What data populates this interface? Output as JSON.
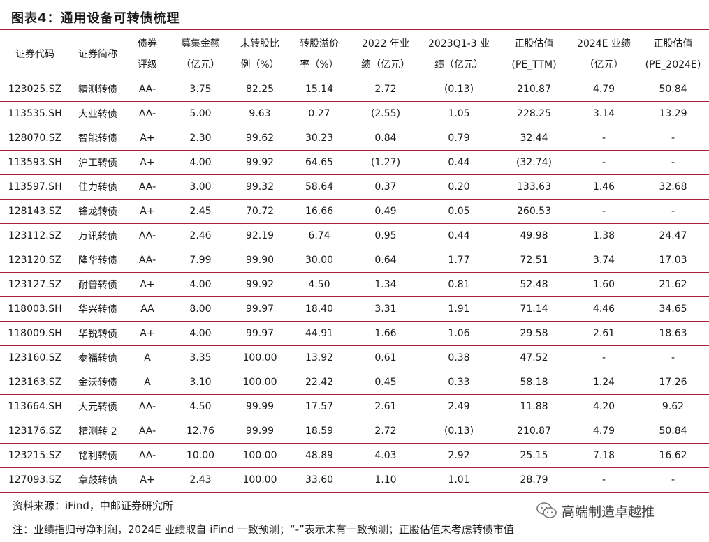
{
  "title": "图表4：通用设备可转债梳理",
  "columns": [
    {
      "line1": "证券代码",
      "line2": ""
    },
    {
      "line1": "证券简称",
      "line2": ""
    },
    {
      "line1": "债券",
      "line2": "评级"
    },
    {
      "line1": "募集金额",
      "line2": "（亿元）"
    },
    {
      "line1": "未转股比",
      "line2": "例（%）"
    },
    {
      "line1": "转股溢价",
      "line2": "率（%）"
    },
    {
      "line1": "2022 年业",
      "line2": "绩（亿元）"
    },
    {
      "line1": "2023Q1-3 业",
      "line2": "绩（亿元）"
    },
    {
      "line1": "正股估值",
      "line2": "(PE_TTM)"
    },
    {
      "line1": "2024E 业绩",
      "line2": "（亿元）"
    },
    {
      "line1": "正股估值",
      "line2": "(PE_2024E)"
    }
  ],
  "rows": [
    [
      "123025.SZ",
      "精测转债",
      "AA-",
      "3.75",
      "82.25",
      "15.14",
      "2.72",
      "(0.13)",
      "210.87",
      "4.79",
      "50.84"
    ],
    [
      "113535.SH",
      "大业转债",
      "AA-",
      "5.00",
      "9.63",
      "0.27",
      "(2.55)",
      "1.05",
      "228.25",
      "3.14",
      "13.29"
    ],
    [
      "128070.SZ",
      "智能转债",
      "A+",
      "2.30",
      "99.62",
      "30.23",
      "0.84",
      "0.79",
      "32.44",
      "-",
      "-"
    ],
    [
      "113593.SH",
      "沪工转债",
      "A+",
      "4.00",
      "99.92",
      "64.65",
      "(1.27)",
      "0.44",
      "(32.74)",
      "-",
      "-"
    ],
    [
      "113597.SH",
      "佳力转债",
      "AA-",
      "3.00",
      "99.32",
      "58.64",
      "0.37",
      "0.20",
      "133.63",
      "1.46",
      "32.68"
    ],
    [
      "128143.SZ",
      "锋龙转债",
      "A+",
      "2.45",
      "70.72",
      "16.66",
      "0.49",
      "0.05",
      "260.53",
      "-",
      "-"
    ],
    [
      "123112.SZ",
      "万讯转债",
      "AA-",
      "2.46",
      "92.19",
      "6.74",
      "0.95",
      "0.44",
      "49.98",
      "1.38",
      "24.47"
    ],
    [
      "123120.SZ",
      "隆华转债",
      "AA-",
      "7.99",
      "99.90",
      "30.00",
      "0.64",
      "1.77",
      "72.51",
      "3.74",
      "17.03"
    ],
    [
      "123127.SZ",
      "耐普转债",
      "A+",
      "4.00",
      "99.92",
      "4.50",
      "1.34",
      "0.81",
      "52.48",
      "1.60",
      "21.62"
    ],
    [
      "118003.SH",
      "华兴转债",
      "AA",
      "8.00",
      "99.97",
      "18.40",
      "3.31",
      "1.91",
      "71.14",
      "4.46",
      "34.65"
    ],
    [
      "118009.SH",
      "华锐转债",
      "A+",
      "4.00",
      "99.97",
      "44.91",
      "1.66",
      "1.06",
      "29.58",
      "2.61",
      "18.63"
    ],
    [
      "123160.SZ",
      "泰福转债",
      "A",
      "3.35",
      "100.00",
      "13.92",
      "0.61",
      "0.38",
      "47.52",
      "-",
      "-"
    ],
    [
      "123163.SZ",
      "金沃转债",
      "A",
      "3.10",
      "100.00",
      "22.42",
      "0.45",
      "0.33",
      "58.18",
      "1.24",
      "17.26"
    ],
    [
      "113664.SH",
      "大元转债",
      "AA-",
      "4.50",
      "99.99",
      "17.57",
      "2.61",
      "2.49",
      "11.88",
      "4.20",
      "9.62"
    ],
    [
      "123176.SZ",
      "精测转 2",
      "AA-",
      "12.76",
      "99.99",
      "18.59",
      "2.72",
      "(0.13)",
      "210.87",
      "4.79",
      "50.84"
    ],
    [
      "123215.SZ",
      "铭利转债",
      "AA-",
      "10.00",
      "100.00",
      "48.89",
      "4.03",
      "2.92",
      "25.15",
      "7.18",
      "16.62"
    ],
    [
      "127093.SZ",
      "章鼓转债",
      "A+",
      "2.43",
      "100.00",
      "33.60",
      "1.10",
      "1.01",
      "28.79",
      "-",
      "-"
    ]
  ],
  "source": "资料来源：iFind，中邮证券研究所",
  "note": "注：业绩指归母净利润，2024E 业绩取自 iFind 一致预测；“-”表示未有一致预测；正股估值未考虑转债市值",
  "watermark": {
    "text": "高端制造卓越推",
    "icon": "wechat-icon"
  },
  "colors": {
    "accent": "#a8203a"
  }
}
